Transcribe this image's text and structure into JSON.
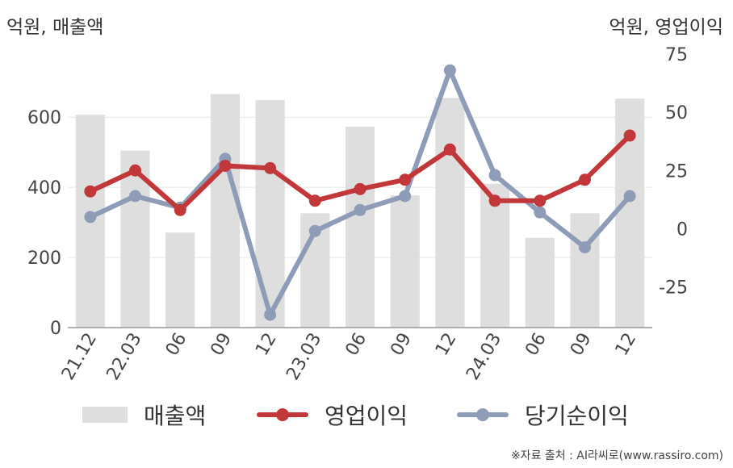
{
  "unit_left": "억원, 매출액",
  "unit_right": "억원, 영업이익",
  "source": "※자료 출처 : AI라씨로(www.rassiro.com)",
  "colors": {
    "revenue": "#dedede",
    "operating_profit": "#c1373a",
    "net_income": "#8f9cb8",
    "axis": "#999999",
    "grid": "#e6e6e6"
  },
  "chart_data": {
    "type": "bar+line",
    "categories": [
      "21.12",
      "22.03",
      "06",
      "09",
      "12",
      "23.03",
      "06",
      "09",
      "12",
      "24.03",
      "06",
      "09",
      "12"
    ],
    "y_left": {
      "ticks": [
        0,
        200,
        400,
        600
      ],
      "lim": [
        0,
        780
      ]
    },
    "y_right": {
      "ticks": [
        -25,
        0,
        25,
        50,
        75
      ],
      "lim": [
        -42.5,
        75
      ]
    },
    "series": [
      {
        "name": "매출액",
        "type": "bar",
        "axis": "left",
        "values": [
          607,
          505,
          271,
          666,
          649,
          326,
          573,
          377,
          655,
          410,
          256,
          326,
          653
        ]
      },
      {
        "name": "영업이익",
        "type": "line",
        "axis": "right",
        "values": [
          16,
          25,
          8,
          27,
          26,
          12,
          17,
          21,
          34,
          12,
          12,
          21,
          40
        ]
      },
      {
        "name": "당기순이익",
        "type": "line",
        "axis": "right",
        "values": [
          5,
          14,
          9,
          30,
          -37,
          -1,
          8,
          14,
          68,
          23,
          7,
          -8,
          14
        ]
      }
    ],
    "legend": "bottom",
    "grid": true
  }
}
